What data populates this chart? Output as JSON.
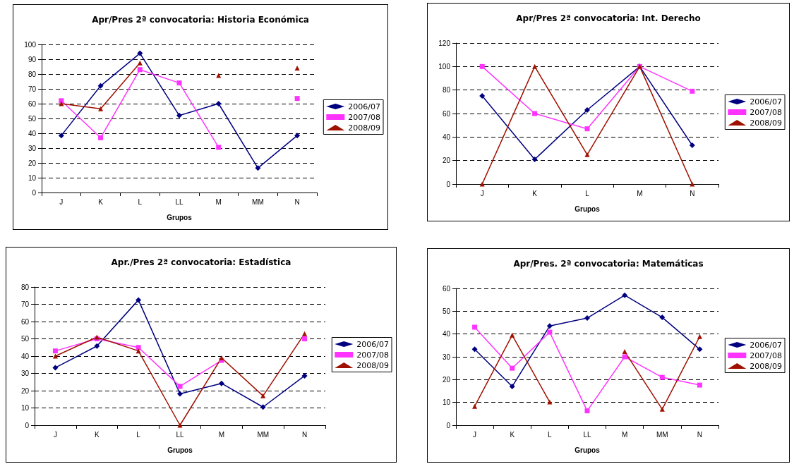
{
  "chart_data": [
    {
      "type": "line",
      "title": "Apr/Pres 2ª convocatoria: Historia Económica",
      "xlabel": "Grupos",
      "categories": [
        "J",
        "K",
        "L",
        "LL",
        "M",
        "MM",
        "N"
      ],
      "ylim": [
        0,
        100
      ],
      "yticks": [
        0,
        10,
        20,
        30,
        40,
        50,
        60,
        70,
        80,
        90,
        100
      ],
      "grid": "y",
      "legend": "right",
      "series": [
        {
          "name": "2006/07",
          "color": "#000080",
          "marker": "diamond",
          "values": [
            38.5,
            72,
            94,
            52,
            60,
            16.5,
            38.5
          ]
        },
        {
          "name": "2007/08",
          "color": "#ff33ff",
          "marker": "square",
          "values": [
            62,
            37,
            83,
            74,
            30.5,
            null,
            63.5
          ]
        },
        {
          "name": "2008/09",
          "color": "#a01000",
          "marker": "triangle",
          "values": [
            60,
            56.5,
            87.5,
            null,
            79,
            null,
            84
          ]
        }
      ]
    },
    {
      "type": "line",
      "title": "Apr/Pres 2ª convocatoria: Int. Derecho",
      "xlabel": "Grupos",
      "categories": [
        "J",
        "K",
        "L",
        "M",
        "N"
      ],
      "ylim": [
        0,
        120
      ],
      "yticks": [
        0,
        20,
        40,
        60,
        80,
        100,
        120
      ],
      "grid": "y",
      "legend": "right",
      "series": [
        {
          "name": "2006/07",
          "color": "#000080",
          "marker": "diamond",
          "values": [
            75,
            21,
            63,
            100,
            33
          ]
        },
        {
          "name": "2007/08",
          "color": "#ff33ff",
          "marker": "square",
          "values": [
            100,
            60,
            47,
            100,
            79
          ]
        },
        {
          "name": "2008/09",
          "color": "#a01000",
          "marker": "triangle",
          "values": [
            0,
            100,
            25,
            100,
            0
          ]
        }
      ]
    },
    {
      "type": "line",
      "title": "Apr./Pres 2ª convocatoria: Estadística",
      "xlabel": "Grupos",
      "categories": [
        "J",
        "K",
        "L",
        "LL",
        "M",
        "MM",
        "N"
      ],
      "ylim": [
        0,
        80
      ],
      "yticks": [
        0,
        10,
        20,
        30,
        40,
        50,
        60,
        70,
        80
      ],
      "grid": "y",
      "legend": "right",
      "series": [
        {
          "name": "2006/07",
          "color": "#000080",
          "marker": "diamond",
          "values": [
            33.3,
            45.8,
            72.5,
            18.2,
            24.2,
            10.5,
            28.6
          ]
        },
        {
          "name": "2007/08",
          "color": "#ff33ff",
          "marker": "square",
          "values": [
            43,
            50,
            45,
            22.5,
            37.5,
            null,
            50
          ]
        },
        {
          "name": "2008/09",
          "color": "#a01000",
          "marker": "triangle",
          "values": [
            40,
            51,
            43,
            0,
            39,
            17,
            53
          ]
        }
      ]
    },
    {
      "type": "line",
      "title": "Apr/Pres. 2ª convocatoria: Matemáticas",
      "xlabel": "Grupos",
      "categories": [
        "J",
        "K",
        "L",
        "LL",
        "M",
        "MM",
        "N"
      ],
      "ylim": [
        0,
        60
      ],
      "yticks": [
        0,
        10,
        20,
        30,
        40,
        50,
        60
      ],
      "grid": "y",
      "legend": "right",
      "series": [
        {
          "name": "2006/07",
          "color": "#000080",
          "marker": "diamond",
          "values": [
            33.3,
            17,
            43.5,
            47,
            57,
            47.3,
            33.3
          ]
        },
        {
          "name": "2007/08",
          "color": "#ff33ff",
          "marker": "square",
          "values": [
            43,
            25,
            40.8,
            6.3,
            30,
            21,
            17.6
          ]
        },
        {
          "name": "2008/09",
          "color": "#a01000",
          "marker": "triangle",
          "values": [
            8.3,
            39.5,
            10.2,
            null,
            32.3,
            7,
            38.9
          ]
        }
      ]
    }
  ]
}
